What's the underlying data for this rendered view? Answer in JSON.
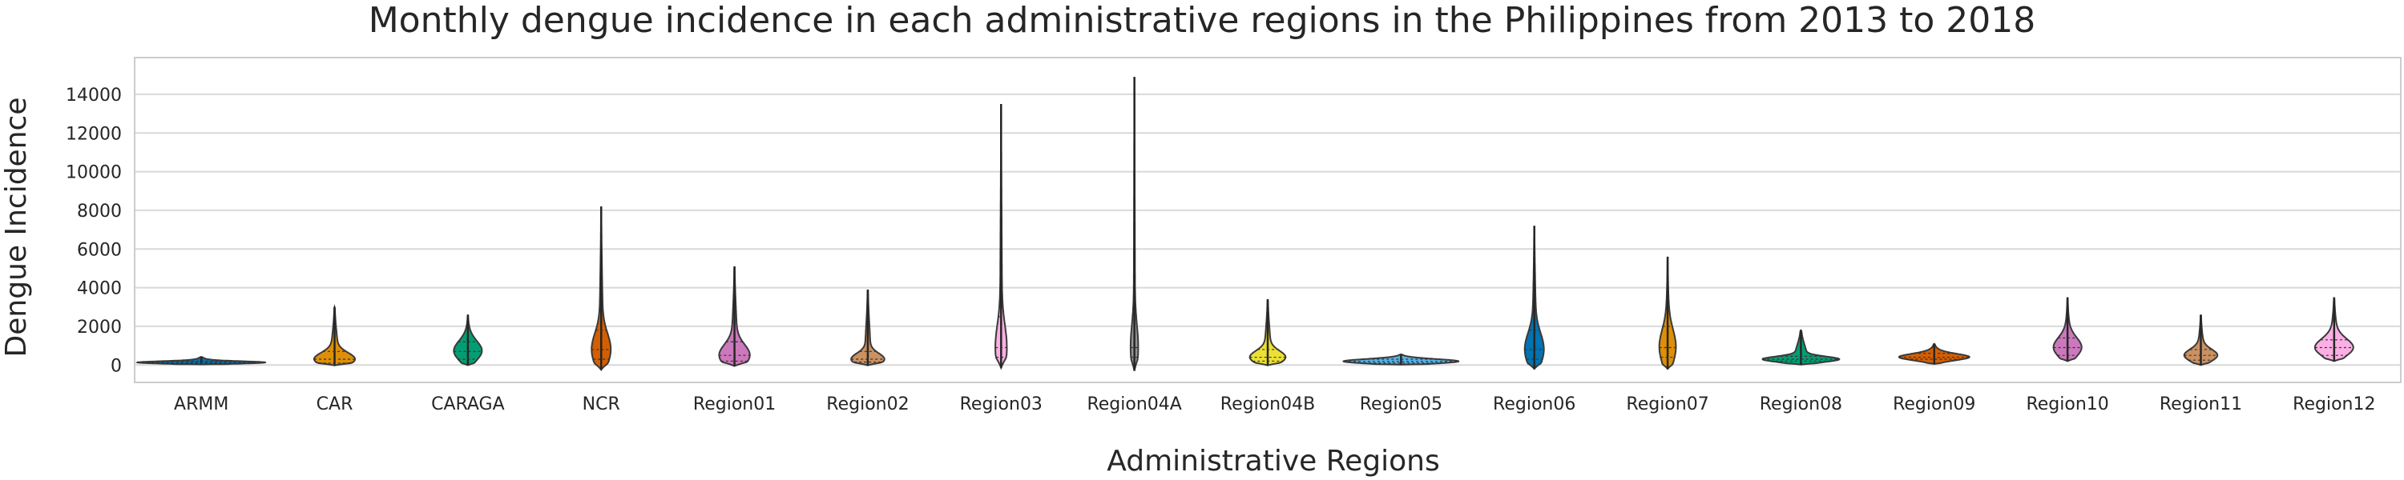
{
  "chart_data": {
    "type": "violin",
    "title": "Monthly dengue incidence in each administrative regions in the Philippines from 2013 to 2018",
    "xlabel": "Administrative Regions",
    "ylabel": "Dengue Incidence",
    "ylim": [
      -900,
      15900
    ],
    "yticks": [
      0,
      2000,
      4000,
      6000,
      8000,
      10000,
      12000,
      14000
    ],
    "grid": "horizontal",
    "categories": [
      "ARMM",
      "CAR",
      "CARAGA",
      "NCR",
      "Region01",
      "Region02",
      "Region03",
      "Region04A",
      "Region04B",
      "Region05",
      "Region06",
      "Region07",
      "Region08",
      "Region09",
      "Region10",
      "Region11",
      "Region12"
    ],
    "series": [
      {
        "category": "ARMM",
        "color": "#0173b2",
        "min": 30,
        "max": 420,
        "median": 130,
        "q1": 80,
        "q3": 190,
        "max_width": 1.0
      },
      {
        "category": "CAR",
        "color": "#de8f05",
        "min": -20,
        "max": 3000,
        "median": 300,
        "q1": 100,
        "q3": 700,
        "max_width": 0.32
      },
      {
        "category": "CARAGA",
        "color": "#029e73",
        "min": -10,
        "max": 2600,
        "median": 700,
        "q1": 300,
        "q3": 1200,
        "max_width": 0.22
      },
      {
        "category": "NCR",
        "color": "#d55e00",
        "min": -250,
        "max": 8200,
        "median": 800,
        "q1": 300,
        "q3": 1800,
        "max_width": 0.15
      },
      {
        "category": "Region01",
        "color": "#cc78bc",
        "min": -50,
        "max": 5100,
        "median": 500,
        "q1": 200,
        "q3": 1200,
        "max_width": 0.24
      },
      {
        "category": "Region02",
        "color": "#ca9161",
        "min": -20,
        "max": 3900,
        "median": 300,
        "q1": 150,
        "q3": 700,
        "max_width": 0.26
      },
      {
        "category": "Region03",
        "color": "#fbafe4",
        "min": -150,
        "max": 13500,
        "median": 900,
        "q1": 400,
        "q3": 2500,
        "max_width": 0.09
      },
      {
        "category": "Region04A",
        "color": "#949494",
        "min": -300,
        "max": 14900,
        "median": 900,
        "q1": 400,
        "q3": 2500,
        "max_width": 0.06
      },
      {
        "category": "Region04B",
        "color": "#ece133",
        "min": -20,
        "max": 3400,
        "median": 400,
        "q1": 200,
        "q3": 800,
        "max_width": 0.28
      },
      {
        "category": "Region05",
        "color": "#56b4e9",
        "min": 20,
        "max": 550,
        "median": 180,
        "q1": 100,
        "q3": 300,
        "max_width": 0.9
      },
      {
        "category": "Region06",
        "color": "#0173b2",
        "min": -200,
        "max": 7200,
        "median": 800,
        "q1": 300,
        "q3": 1800,
        "max_width": 0.15
      },
      {
        "category": "Region07",
        "color": "#de8f05",
        "min": -200,
        "max": 5600,
        "median": 900,
        "q1": 400,
        "q3": 2000,
        "max_width": 0.13
      },
      {
        "category": "Region08",
        "color": "#029e73",
        "min": 20,
        "max": 1800,
        "median": 300,
        "q1": 200,
        "q3": 450,
        "max_width": 0.6
      },
      {
        "category": "Region09",
        "color": "#d55e00",
        "min": 50,
        "max": 1100,
        "median": 400,
        "q1": 300,
        "q3": 600,
        "max_width": 0.55
      },
      {
        "category": "Region10",
        "color": "#cc78bc",
        "min": 200,
        "max": 3500,
        "median": 900,
        "q1": 500,
        "q3": 1400,
        "max_width": 0.22
      },
      {
        "category": "Region11",
        "color": "#ca9161",
        "min": 0,
        "max": 2600,
        "median": 500,
        "q1": 250,
        "q3": 800,
        "max_width": 0.26
      },
      {
        "category": "Region12",
        "color": "#fbafe4",
        "min": 200,
        "max": 3500,
        "median": 900,
        "q1": 500,
        "q3": 1300,
        "max_width": 0.3
      }
    ]
  }
}
